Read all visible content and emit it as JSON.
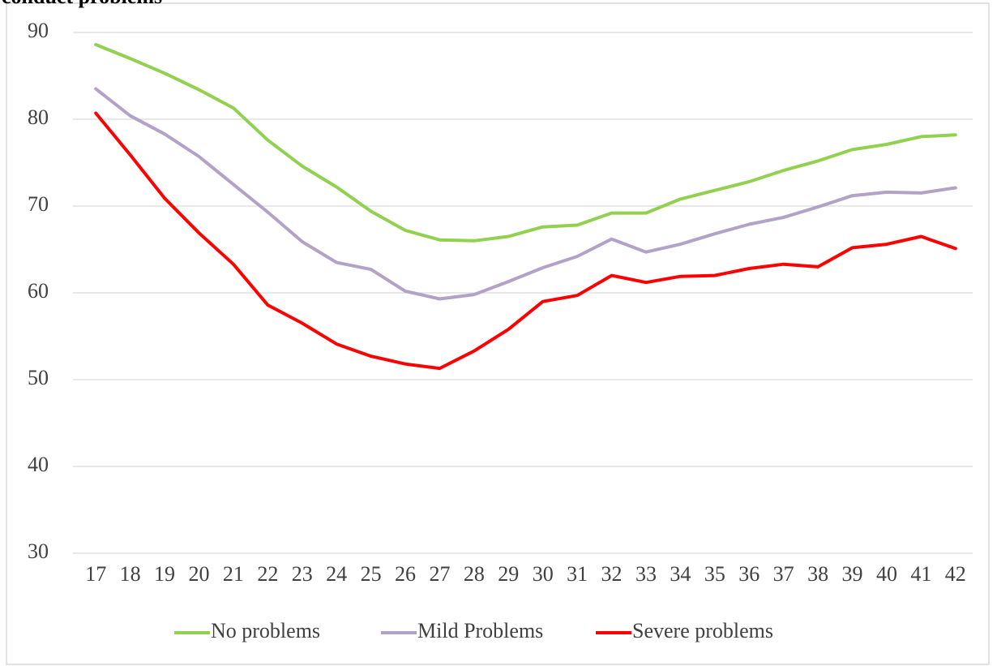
{
  "chart_data": {
    "type": "line",
    "title": "conduct problems",
    "categories": [
      "17",
      "18",
      "19",
      "20",
      "21",
      "22",
      "23",
      "24",
      "25",
      "26",
      "27",
      "28",
      "29",
      "30",
      "31",
      "32",
      "33",
      "34",
      "35",
      "36",
      "37",
      "38",
      "39",
      "40",
      "41",
      "42"
    ],
    "series": [
      {
        "name": "No problems",
        "color": "#92d050",
        "values": [
          88.6,
          87.0,
          85.3,
          83.4,
          81.3,
          77.6,
          74.6,
          72.2,
          69.4,
          67.2,
          66.1,
          66.0,
          66.5,
          67.6,
          67.8,
          69.2,
          69.2,
          70.8,
          71.8,
          72.8,
          74.1,
          75.2,
          76.5,
          77.1,
          78.0,
          78.2
        ]
      },
      {
        "name": "Mild Problems",
        "color": "#b3a2c7",
        "values": [
          83.5,
          80.4,
          78.3,
          75.7,
          72.5,
          69.3,
          65.9,
          63.5,
          62.7,
          60.2,
          59.3,
          59.8,
          61.3,
          62.9,
          64.2,
          66.2,
          64.7,
          65.6,
          66.8,
          67.9,
          68.7,
          69.9,
          71.2,
          71.6,
          71.5,
          72.1
        ]
      },
      {
        "name": "Severe problems",
        "color": "#ff0000",
        "values": [
          80.7,
          75.9,
          70.9,
          66.9,
          63.3,
          58.6,
          56.5,
          54.1,
          52.7,
          51.8,
          51.3,
          53.3,
          55.8,
          59.0,
          59.7,
          62.0,
          61.2,
          61.9,
          62.0,
          62.8,
          63.3,
          63.0,
          65.2,
          65.6,
          66.5,
          65.1
        ]
      }
    ],
    "ylim": [
      30,
      90
    ],
    "yticks": [
      30,
      40,
      50,
      60,
      70,
      80,
      90
    ],
    "grid": true,
    "legend": "bottom"
  }
}
